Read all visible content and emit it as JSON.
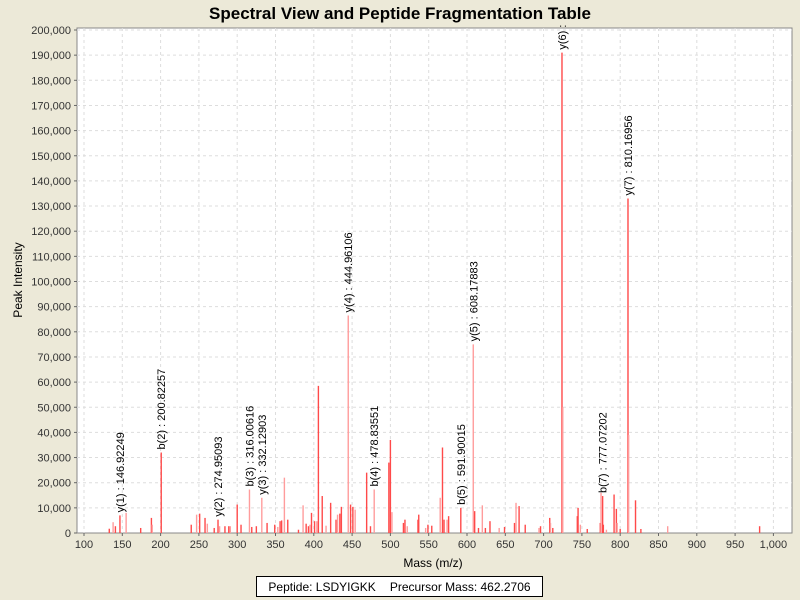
{
  "chart_data": {
    "type": "bar",
    "title": "Spectral View and Peptide Fragmentation Table",
    "xlabel": "Mass (m/z)",
    "ylabel": "Peak Intensity",
    "xlim": [
      100,
      1000
    ],
    "ylim": [
      0,
      200000
    ],
    "grid": true,
    "x_ticks": [
      "100",
      "150",
      "200",
      "250",
      "300",
      "350",
      "400",
      "450",
      "500",
      "550",
      "600",
      "650",
      "700",
      "750",
      "800",
      "850",
      "900",
      "950",
      "1,000"
    ],
    "y_ticks": [
      "0",
      "10,000",
      "20,000",
      "30,000",
      "40,000",
      "50,000",
      "60,000",
      "70,000",
      "80,000",
      "90,000",
      "100,000",
      "110,000",
      "120,000",
      "130,000",
      "140,000",
      "150,000",
      "160,000",
      "170,000",
      "180,000",
      "190,000",
      "200,000"
    ],
    "colors": {
      "peak": "#ff4a4a",
      "peak_light": "#ff9c9c"
    },
    "peaks": [
      [
        133,
        1700
      ],
      [
        138,
        4300
      ],
      [
        141,
        2700
      ],
      [
        146.92,
        7000
      ],
      [
        155,
        8000
      ],
      [
        174,
        2000
      ],
      [
        188,
        6000
      ],
      [
        189,
        3300
      ],
      [
        200.82,
        32000
      ],
      [
        240,
        3300
      ],
      [
        247,
        7300
      ],
      [
        251,
        7700
      ],
      [
        258,
        6000
      ],
      [
        261,
        3700
      ],
      [
        270,
        2000
      ],
      [
        274.95,
        5300
      ],
      [
        277,
        2700
      ],
      [
        284,
        2700
      ],
      [
        289,
        2700
      ],
      [
        291,
        2700
      ],
      [
        300,
        11300
      ],
      [
        305,
        3300
      ],
      [
        316.01,
        17300
      ],
      [
        319,
        2400
      ],
      [
        325,
        2700
      ],
      [
        332.13,
        14000
      ],
      [
        339,
        4000
      ],
      [
        349,
        3300
      ],
      [
        353,
        2400
      ],
      [
        356,
        4700
      ],
      [
        358,
        5000
      ],
      [
        361.6,
        22000
      ],
      [
        366,
        5300
      ],
      [
        380,
        1300
      ],
      [
        386,
        11000
      ],
      [
        390,
        3700
      ],
      [
        393,
        2700
      ],
      [
        395,
        3300
      ],
      [
        397,
        8000
      ],
      [
        401,
        4700
      ],
      [
        404,
        4700
      ],
      [
        406,
        58500
      ],
      [
        411,
        14700
      ],
      [
        416,
        2900
      ],
      [
        422,
        12000
      ],
      [
        429,
        5300
      ],
      [
        431,
        7300
      ],
      [
        434,
        7700
      ],
      [
        436,
        10400
      ],
      [
        444.96,
        86500
      ],
      [
        448,
        11300
      ],
      [
        451,
        10400
      ],
      [
        454,
        9300
      ],
      [
        469,
        24000
      ],
      [
        474,
        2700
      ],
      [
        478.84,
        17300
      ],
      [
        498,
        28000
      ],
      [
        500,
        37000
      ],
      [
        502,
        8300
      ],
      [
        517,
        4000
      ],
      [
        519,
        5300
      ],
      [
        522,
        2700
      ],
      [
        536,
        5300
      ],
      [
        537,
        7300
      ],
      [
        546,
        2000
      ],
      [
        549,
        3300
      ],
      [
        554,
        2900
      ],
      [
        565,
        14000
      ],
      [
        568,
        34000
      ],
      [
        570,
        5300
      ],
      [
        574,
        5300
      ],
      [
        576,
        6700
      ],
      [
        591.9,
        10000
      ],
      [
        608.18,
        75000
      ],
      [
        610,
        8700
      ],
      [
        615,
        2000
      ],
      [
        620,
        11000
      ],
      [
        624,
        2000
      ],
      [
        630,
        4700
      ],
      [
        642,
        2000
      ],
      [
        649,
        2400
      ],
      [
        662,
        4000
      ],
      [
        664,
        12000
      ],
      [
        668,
        10700
      ],
      [
        676,
        3300
      ],
      [
        694,
        2000
      ],
      [
        696,
        2700
      ],
      [
        708,
        6000
      ],
      [
        709,
        4000
      ],
      [
        712,
        2000
      ],
      [
        724,
        191000
      ],
      [
        725,
        50000
      ],
      [
        744,
        6700
      ],
      [
        745,
        10000
      ],
      [
        748,
        3300
      ],
      [
        757,
        1600
      ],
      [
        774,
        4000
      ],
      [
        775,
        16000
      ],
      [
        777.07,
        14700
      ],
      [
        778,
        3300
      ],
      [
        782,
        1300
      ],
      [
        792,
        15300
      ],
      [
        795,
        9600
      ],
      [
        796,
        4000
      ],
      [
        800,
        1600
      ],
      [
        810.17,
        133000
      ],
      [
        811,
        39000
      ],
      [
        820,
        13000
      ],
      [
        827,
        1600
      ],
      [
        862,
        2700
      ],
      [
        982,
        2700
      ]
    ],
    "annotations": [
      {
        "mass": 146.92249,
        "intensity": 7000,
        "label": "y(1) : 146.92249"
      },
      {
        "mass": 200.82257,
        "intensity": 32000,
        "label": "b(2) : 200.82257"
      },
      {
        "mass": 274.95093,
        "intensity": 5300,
        "label": "y(2) : 274.95093"
      },
      {
        "mass": 316.00616,
        "intensity": 17300,
        "label": "b(3) : 316.00616"
      },
      {
        "mass": 332.12903,
        "intensity": 14000,
        "label": "y(3) : 332.12903"
      },
      {
        "mass": 444.96106,
        "intensity": 86500,
        "label": "y(4) : 444.96106"
      },
      {
        "mass": 478.83551,
        "intensity": 17300,
        "label": "b(4) : 478.83551"
      },
      {
        "mass": 591.90015,
        "intensity": 10000,
        "label": "b(5) : 591.90015"
      },
      {
        "mass": 608.17883,
        "intensity": 75000,
        "label": "y(5) : 608.17883"
      },
      {
        "mass": 724,
        "intensity": 191000,
        "label": "y(6) :"
      },
      {
        "mass": 777.07202,
        "intensity": 14700,
        "label": "b(7) : 777.07202"
      },
      {
        "mass": 810.16956,
        "intensity": 133000,
        "label": "y(7) : 810.16956"
      }
    ]
  },
  "legend": {
    "peptide": "Peptide: LSDYIGKK",
    "precursor": "Precursor Mass: 462.2706"
  }
}
